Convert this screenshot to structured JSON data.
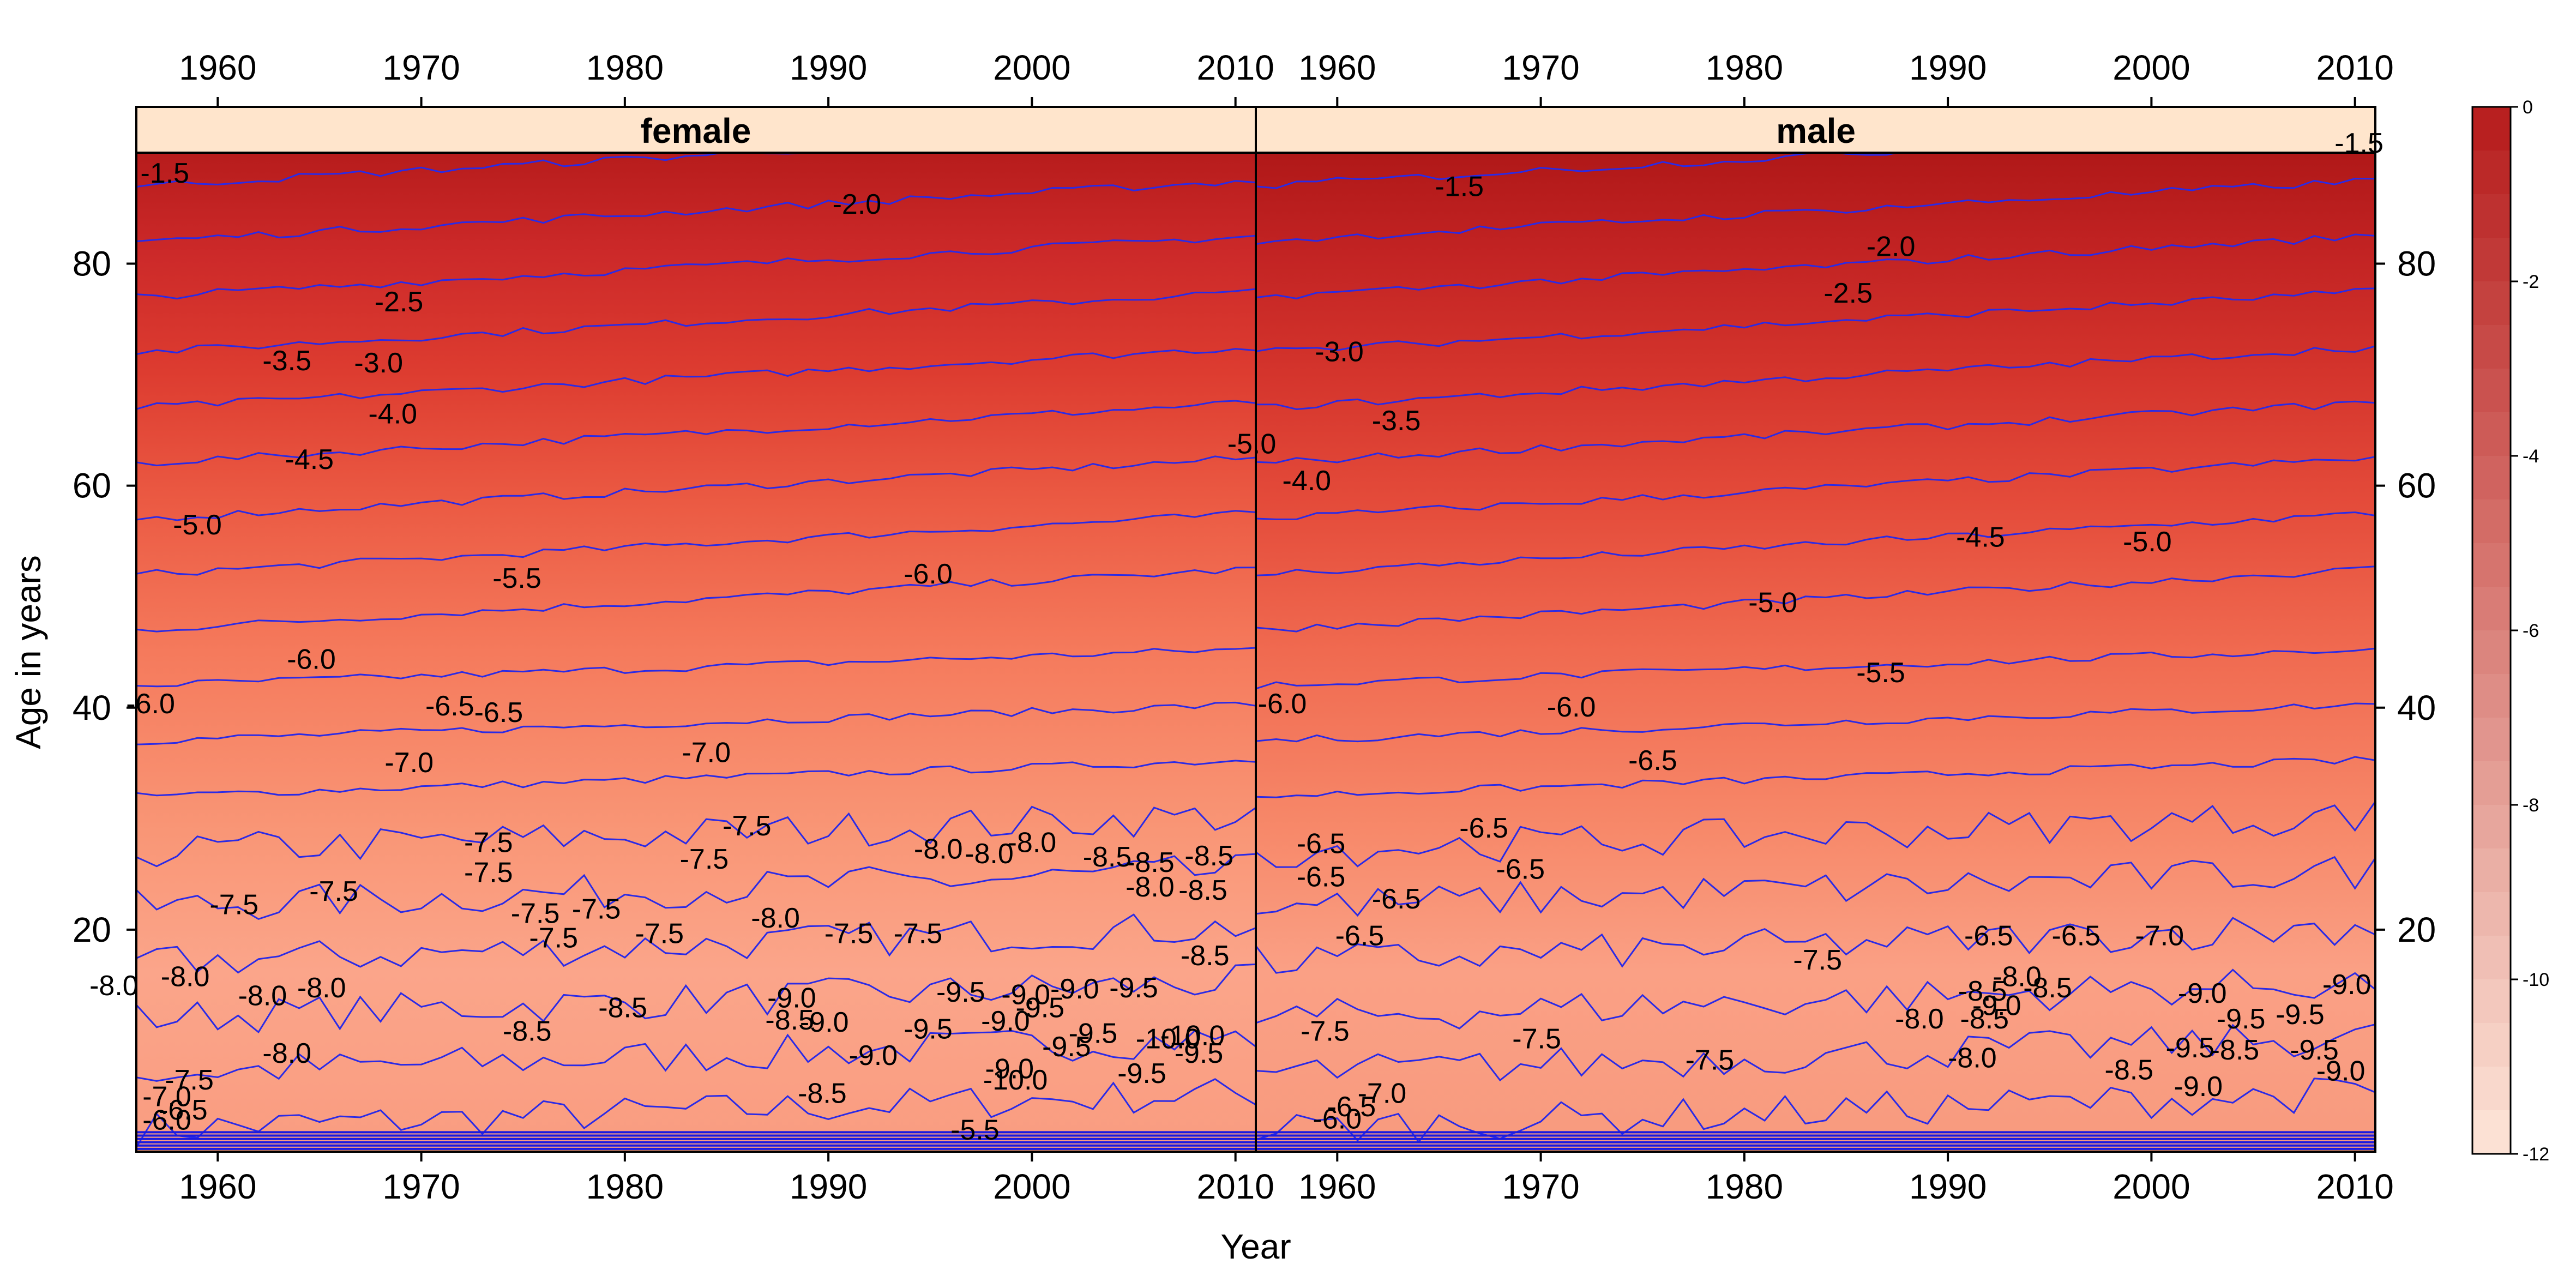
{
  "chart_data": {
    "type": "heatmap",
    "xlabel": "Year",
    "ylabel": "Age in years",
    "x_range": [
      1956,
      2011
    ],
    "y_range": [
      0,
      90
    ],
    "x_ticks": [
      1960,
      1970,
      1980,
      1990,
      2000,
      2010
    ],
    "y_ticks": [
      20,
      40,
      60,
      80
    ],
    "legend": {
      "position": "right",
      "min": -12,
      "max": 0,
      "ticks": [
        0,
        -2,
        -4,
        -6,
        -8,
        -10,
        -12
      ],
      "color_high": "#b71c1c",
      "color_low": "#fde5d8"
    },
    "panels": [
      {
        "name": "female",
        "contours": [
          {
            "label": "-1.5",
            "x": 1956.2,
            "y": 87.3,
            "level": -1.5
          },
          {
            "label": "-2.0",
            "x": 1990.2,
            "y": 84.5,
            "level": -2.0
          },
          {
            "label": "-2.5",
            "x": 1967.7,
            "y": 75.7,
            "level": -2.5
          },
          {
            "label": "-3.0",
            "x": 1966.7,
            "y": 70.2,
            "level": -3.0
          },
          {
            "label": "-3.5",
            "x": 1962.2,
            "y": 70.4,
            "level": -3.5
          },
          {
            "label": "-4.0",
            "x": 1967.4,
            "y": 65.6,
            "level": -4.0
          },
          {
            "label": "-4.5",
            "x": 1963.3,
            "y": 61.5,
            "level": -4.5
          },
          {
            "label": "-5.0",
            "x": 2009.6,
            "y": 62.9,
            "level": -5.0
          },
          {
            "label": "-5.0",
            "x": 1957.8,
            "y": 55.6,
            "level": -5.0
          },
          {
            "label": "-5.5",
            "x": 1973.5,
            "y": 50.8,
            "level": -5.5
          },
          {
            "label": "-6.0",
            "x": 1993.7,
            "y": 51.2,
            "level": -6.0
          },
          {
            "label": "-6.0",
            "x": 1963.4,
            "y": 43.5,
            "level": -6.0
          },
          {
            "label": "-6.0",
            "x": 1955.5,
            "y": 39.5,
            "level": -6.0
          },
          {
            "label": "-6.5",
            "x": 1970.2,
            "y": 39.3,
            "level": -6.5
          },
          {
            "label": "-6.5",
            "x": 1972.6,
            "y": 38.7,
            "level": -6.5
          },
          {
            "label": "-7.0",
            "x": 1968.2,
            "y": 34.2,
            "level": -7.0
          },
          {
            "label": "-7.0",
            "x": 1982.8,
            "y": 35.1,
            "level": -7.0
          },
          {
            "label": "-7.5",
            "x": 1972.1,
            "y": 27.0,
            "level": -7.5
          },
          {
            "label": "-7.5",
            "x": 1972.1,
            "y": 24.3,
            "level": -7.5
          },
          {
            "label": "-7.5",
            "x": 1984.8,
            "y": 28.5,
            "level": -7.5
          },
          {
            "label": "-7.5",
            "x": 1982.7,
            "y": 25.5,
            "level": -7.5
          },
          {
            "label": "-7.5",
            "x": 1959.6,
            "y": 21.4,
            "level": -7.5
          },
          {
            "label": "-7.5",
            "x": 1964.5,
            "y": 22.6,
            "level": -7.5
          },
          {
            "label": "-7.5",
            "x": 1974.4,
            "y": 20.6,
            "level": -7.5
          },
          {
            "label": "-7.5",
            "x": 1975.3,
            "y": 18.4,
            "level": -7.5
          },
          {
            "label": "-7.5",
            "x": 1977.4,
            "y": 21.0,
            "level": -7.5
          },
          {
            "label": "-7.5",
            "x": 1980.5,
            "y": 18.8,
            "level": -7.5
          },
          {
            "label": "-7.5",
            "x": 1989.8,
            "y": 18.8,
            "level": -7.5
          },
          {
            "label": "-7.5",
            "x": 1993.2,
            "y": 18.8,
            "level": -7.5
          },
          {
            "label": "-8.0",
            "x": 1986.2,
            "y": 20.2,
            "level": -8.0
          },
          {
            "label": "-8.0",
            "x": 1994.2,
            "y": 26.4,
            "level": -8.0
          },
          {
            "label": "-8.0",
            "x": 1996.7,
            "y": 26.0,
            "level": -8.0
          },
          {
            "label": "-8.0",
            "x": 1998.8,
            "y": 27.0,
            "level": -8.0
          },
          {
            "label": "-8.5",
            "x": 2002.5,
            "y": 25.7,
            "level": -8.5
          },
          {
            "label": "-8.5",
            "x": 2004.6,
            "y": 25.2,
            "level": -8.5
          },
          {
            "label": "-8.5",
            "x": 2007.5,
            "y": 25.8,
            "level": -8.5
          },
          {
            "label": "-8.0",
            "x": 2004.6,
            "y": 23.0,
            "level": -8.0
          },
          {
            "label": "-8.5",
            "x": 2007.2,
            "y": 22.7,
            "level": -8.5
          },
          {
            "label": "-8.5",
            "x": 2007.3,
            "y": 16.8,
            "level": -8.5
          },
          {
            "label": "-8.0",
            "x": 1953.7,
            "y": 14.1,
            "level": -8.0
          },
          {
            "label": "-8.0",
            "x": 1957.2,
            "y": 14.9,
            "level": -8.0
          },
          {
            "label": "-8.0",
            "x": 1961.0,
            "y": 13.2,
            "level": -8.0
          },
          {
            "label": "-8.0",
            "x": 1963.9,
            "y": 13.9,
            "level": -8.0
          },
          {
            "label": "-8.0",
            "x": 1962.2,
            "y": 8.0,
            "level": -8.0
          },
          {
            "label": "-8.5",
            "x": 1974.0,
            "y": 10.0,
            "level": -8.5
          },
          {
            "label": "-8.5",
            "x": 1978.7,
            "y": 12.1,
            "level": -8.5
          },
          {
            "label": "-9.0",
            "x": 1987.0,
            "y": 13.0,
            "level": -9.0
          },
          {
            "label": "-8.5",
            "x": 1986.9,
            "y": 11.0,
            "level": -8.5
          },
          {
            "label": "-9.0",
            "x": 1988.6,
            "y": 10.8,
            "level": -9.0
          },
          {
            "label": "-9.5",
            "x": 1995.3,
            "y": 13.5,
            "level": -9.5
          },
          {
            "label": "-9.0",
            "x": 1998.5,
            "y": 13.3,
            "level": -9.0
          },
          {
            "label": "-9.5",
            "x": 1999.2,
            "y": 12.1,
            "level": -9.5
          },
          {
            "label": "-9.0",
            "x": 2000.9,
            "y": 13.8,
            "level": -9.0
          },
          {
            "label": "-9.5",
            "x": 2003.8,
            "y": 13.9,
            "level": -9.5
          },
          {
            "label": "-9.5",
            "x": 1993.7,
            "y": 10.2,
            "level": -9.5
          },
          {
            "label": "-9.0",
            "x": 1997.5,
            "y": 10.9,
            "level": -9.0
          },
          {
            "label": "-9.0",
            "x": 1991.0,
            "y": 7.8,
            "level": -9.0
          },
          {
            "label": "-9.5",
            "x": 2000.5,
            "y": 8.6,
            "level": -9.5
          },
          {
            "label": "-9.5",
            "x": 2001.8,
            "y": 9.8,
            "level": -9.5
          },
          {
            "label": "-10.0",
            "x": 2005.1,
            "y": 9.3,
            "level": -10.0
          },
          {
            "label": "-10.0",
            "x": 2006.3,
            "y": 9.6,
            "level": -10.0
          },
          {
            "label": "-9.5",
            "x": 2007.0,
            "y": 8.0,
            "level": -9.5
          },
          {
            "label": "-9.5",
            "x": 2004.2,
            "y": 6.2,
            "level": -9.5
          },
          {
            "label": "-9.0",
            "x": 1997.7,
            "y": 6.6,
            "level": -9.0
          },
          {
            "label": "-10.0",
            "x": 1997.6,
            "y": 5.6,
            "level": -10.0
          },
          {
            "label": "-8.5",
            "x": 1988.5,
            "y": 4.4,
            "level": -8.5
          },
          {
            "label": "-7.5",
            "x": 1957.4,
            "y": 5.6,
            "level": -7.5
          },
          {
            "label": "-7.0",
            "x": 1956.3,
            "y": 4.1,
            "level": -7.0
          },
          {
            "label": "-6.5",
            "x": 1957.1,
            "y": 2.9,
            "level": -6.5
          },
          {
            "label": "-6.0",
            "x": 1956.3,
            "y": 2.0,
            "level": -6.0
          },
          {
            "label": "-5.5",
            "x": 1996.0,
            "y": 1.1,
            "level": -5.5
          }
        ]
      },
      {
        "name": "male",
        "contours": [
          {
            "label": "-1.5",
            "x": 2009.0,
            "y": 90.0,
            "level": -1.5
          },
          {
            "label": "-1.5",
            "x": 1964.8,
            "y": 86.1,
            "level": -1.5
          },
          {
            "label": "-2.0",
            "x": 1986.0,
            "y": 80.7,
            "level": -2.0
          },
          {
            "label": "-2.5",
            "x": 1983.9,
            "y": 76.5,
            "level": -2.5
          },
          {
            "label": "-3.0",
            "x": 1958.9,
            "y": 71.2,
            "level": -3.0
          },
          {
            "label": "-3.5",
            "x": 1961.7,
            "y": 65.0,
            "level": -3.5
          },
          {
            "label": "-4.0",
            "x": 1957.3,
            "y": 59.6,
            "level": -4.0
          },
          {
            "label": "-4.5",
            "x": 1990.4,
            "y": 54.5,
            "level": -4.5
          },
          {
            "label": "-5.0",
            "x": 1998.6,
            "y": 54.1,
            "level": -5.0
          },
          {
            "label": "-5.0",
            "x": 1980.2,
            "y": 48.6,
            "level": -5.0
          },
          {
            "label": "-5.5",
            "x": 1985.5,
            "y": 42.3,
            "level": -5.5
          },
          {
            "label": "-6.0",
            "x": 1970.3,
            "y": 39.2,
            "level": -6.0
          },
          {
            "label": "-6.0",
            "x": 1956.1,
            "y": 39.5,
            "level": -6.0
          },
          {
            "label": "-6.5",
            "x": 1974.3,
            "y": 34.4,
            "level": -6.5
          },
          {
            "label": "-6.5",
            "x": 1958.0,
            "y": 26.9,
            "level": -6.5
          },
          {
            "label": "-6.5",
            "x": 1958.0,
            "y": 23.9,
            "level": -6.5
          },
          {
            "label": "-6.5",
            "x": 1961.7,
            "y": 21.9,
            "level": -6.5
          },
          {
            "label": "-6.5",
            "x": 1966.0,
            "y": 28.3,
            "level": -6.5
          },
          {
            "label": "-6.5",
            "x": 1967.8,
            "y": 24.6,
            "level": -6.5
          },
          {
            "label": "-6.5",
            "x": 1959.9,
            "y": 18.6,
            "level": -6.5
          },
          {
            "label": "-7.5",
            "x": 1982.4,
            "y": 16.4,
            "level": -7.5
          },
          {
            "label": "-6.5",
            "x": 1990.8,
            "y": 18.6,
            "level": -6.5
          },
          {
            "label": "-6.5",
            "x": 1995.1,
            "y": 18.6,
            "level": -6.5
          },
          {
            "label": "-7.0",
            "x": 1999.2,
            "y": 18.6,
            "level": -7.0
          },
          {
            "label": "-8.5",
            "x": 1990.5,
            "y": 13.6,
            "level": -8.5
          },
          {
            "label": "-8.0",
            "x": 1992.2,
            "y": 14.9,
            "level": -8.0
          },
          {
            "label": "-8.5",
            "x": 1993.7,
            "y": 13.9,
            "level": -8.5
          },
          {
            "label": "-8.0",
            "x": 1987.4,
            "y": 11.1,
            "level": -8.0
          },
          {
            "label": "-8.5",
            "x": 1990.6,
            "y": 11.1,
            "level": -8.5
          },
          {
            "label": "-9.0",
            "x": 1991.2,
            "y": 12.3,
            "level": -9.0
          },
          {
            "label": "-8.0",
            "x": 1990.0,
            "y": 7.6,
            "level": -8.0
          },
          {
            "label": "-7.5",
            "x": 1958.2,
            "y": 10.0,
            "level": -7.5
          },
          {
            "label": "-7.5",
            "x": 1968.6,
            "y": 9.3,
            "level": -7.5
          },
          {
            "label": "-7.5",
            "x": 1977.1,
            "y": 7.4,
            "level": -7.5
          },
          {
            "label": "-9.0",
            "x": 2001.3,
            "y": 13.4,
            "level": -9.0
          },
          {
            "label": "-9.0",
            "x": 2008.4,
            "y": 14.2,
            "level": -9.0
          },
          {
            "label": "-9.5",
            "x": 2003.2,
            "y": 11.1,
            "level": -9.5
          },
          {
            "label": "-9.5",
            "x": 2006.1,
            "y": 11.5,
            "level": -9.5
          },
          {
            "label": "-9.5",
            "x": 2000.7,
            "y": 8.5,
            "level": -9.5
          },
          {
            "label": "-8.5",
            "x": 2002.9,
            "y": 8.3,
            "level": -8.5
          },
          {
            "label": "-9.0",
            "x": 2001.1,
            "y": 5.0,
            "level": -9.0
          },
          {
            "label": "-8.5",
            "x": 1997.7,
            "y": 6.5,
            "level": -8.5
          },
          {
            "label": "-9.0",
            "x": 2008.1,
            "y": 6.4,
            "level": -9.0
          },
          {
            "label": "-9.5",
            "x": 2006.8,
            "y": 8.3,
            "level": -9.5
          },
          {
            "label": "-7.0",
            "x": 1961.0,
            "y": 4.4,
            "level": -7.0
          },
          {
            "label": "-6.5",
            "x": 1959.5,
            "y": 3.2,
            "level": -6.5
          },
          {
            "label": "-6.0",
            "x": 1958.8,
            "y": 2.1,
            "level": -6.0
          }
        ]
      }
    ]
  }
}
